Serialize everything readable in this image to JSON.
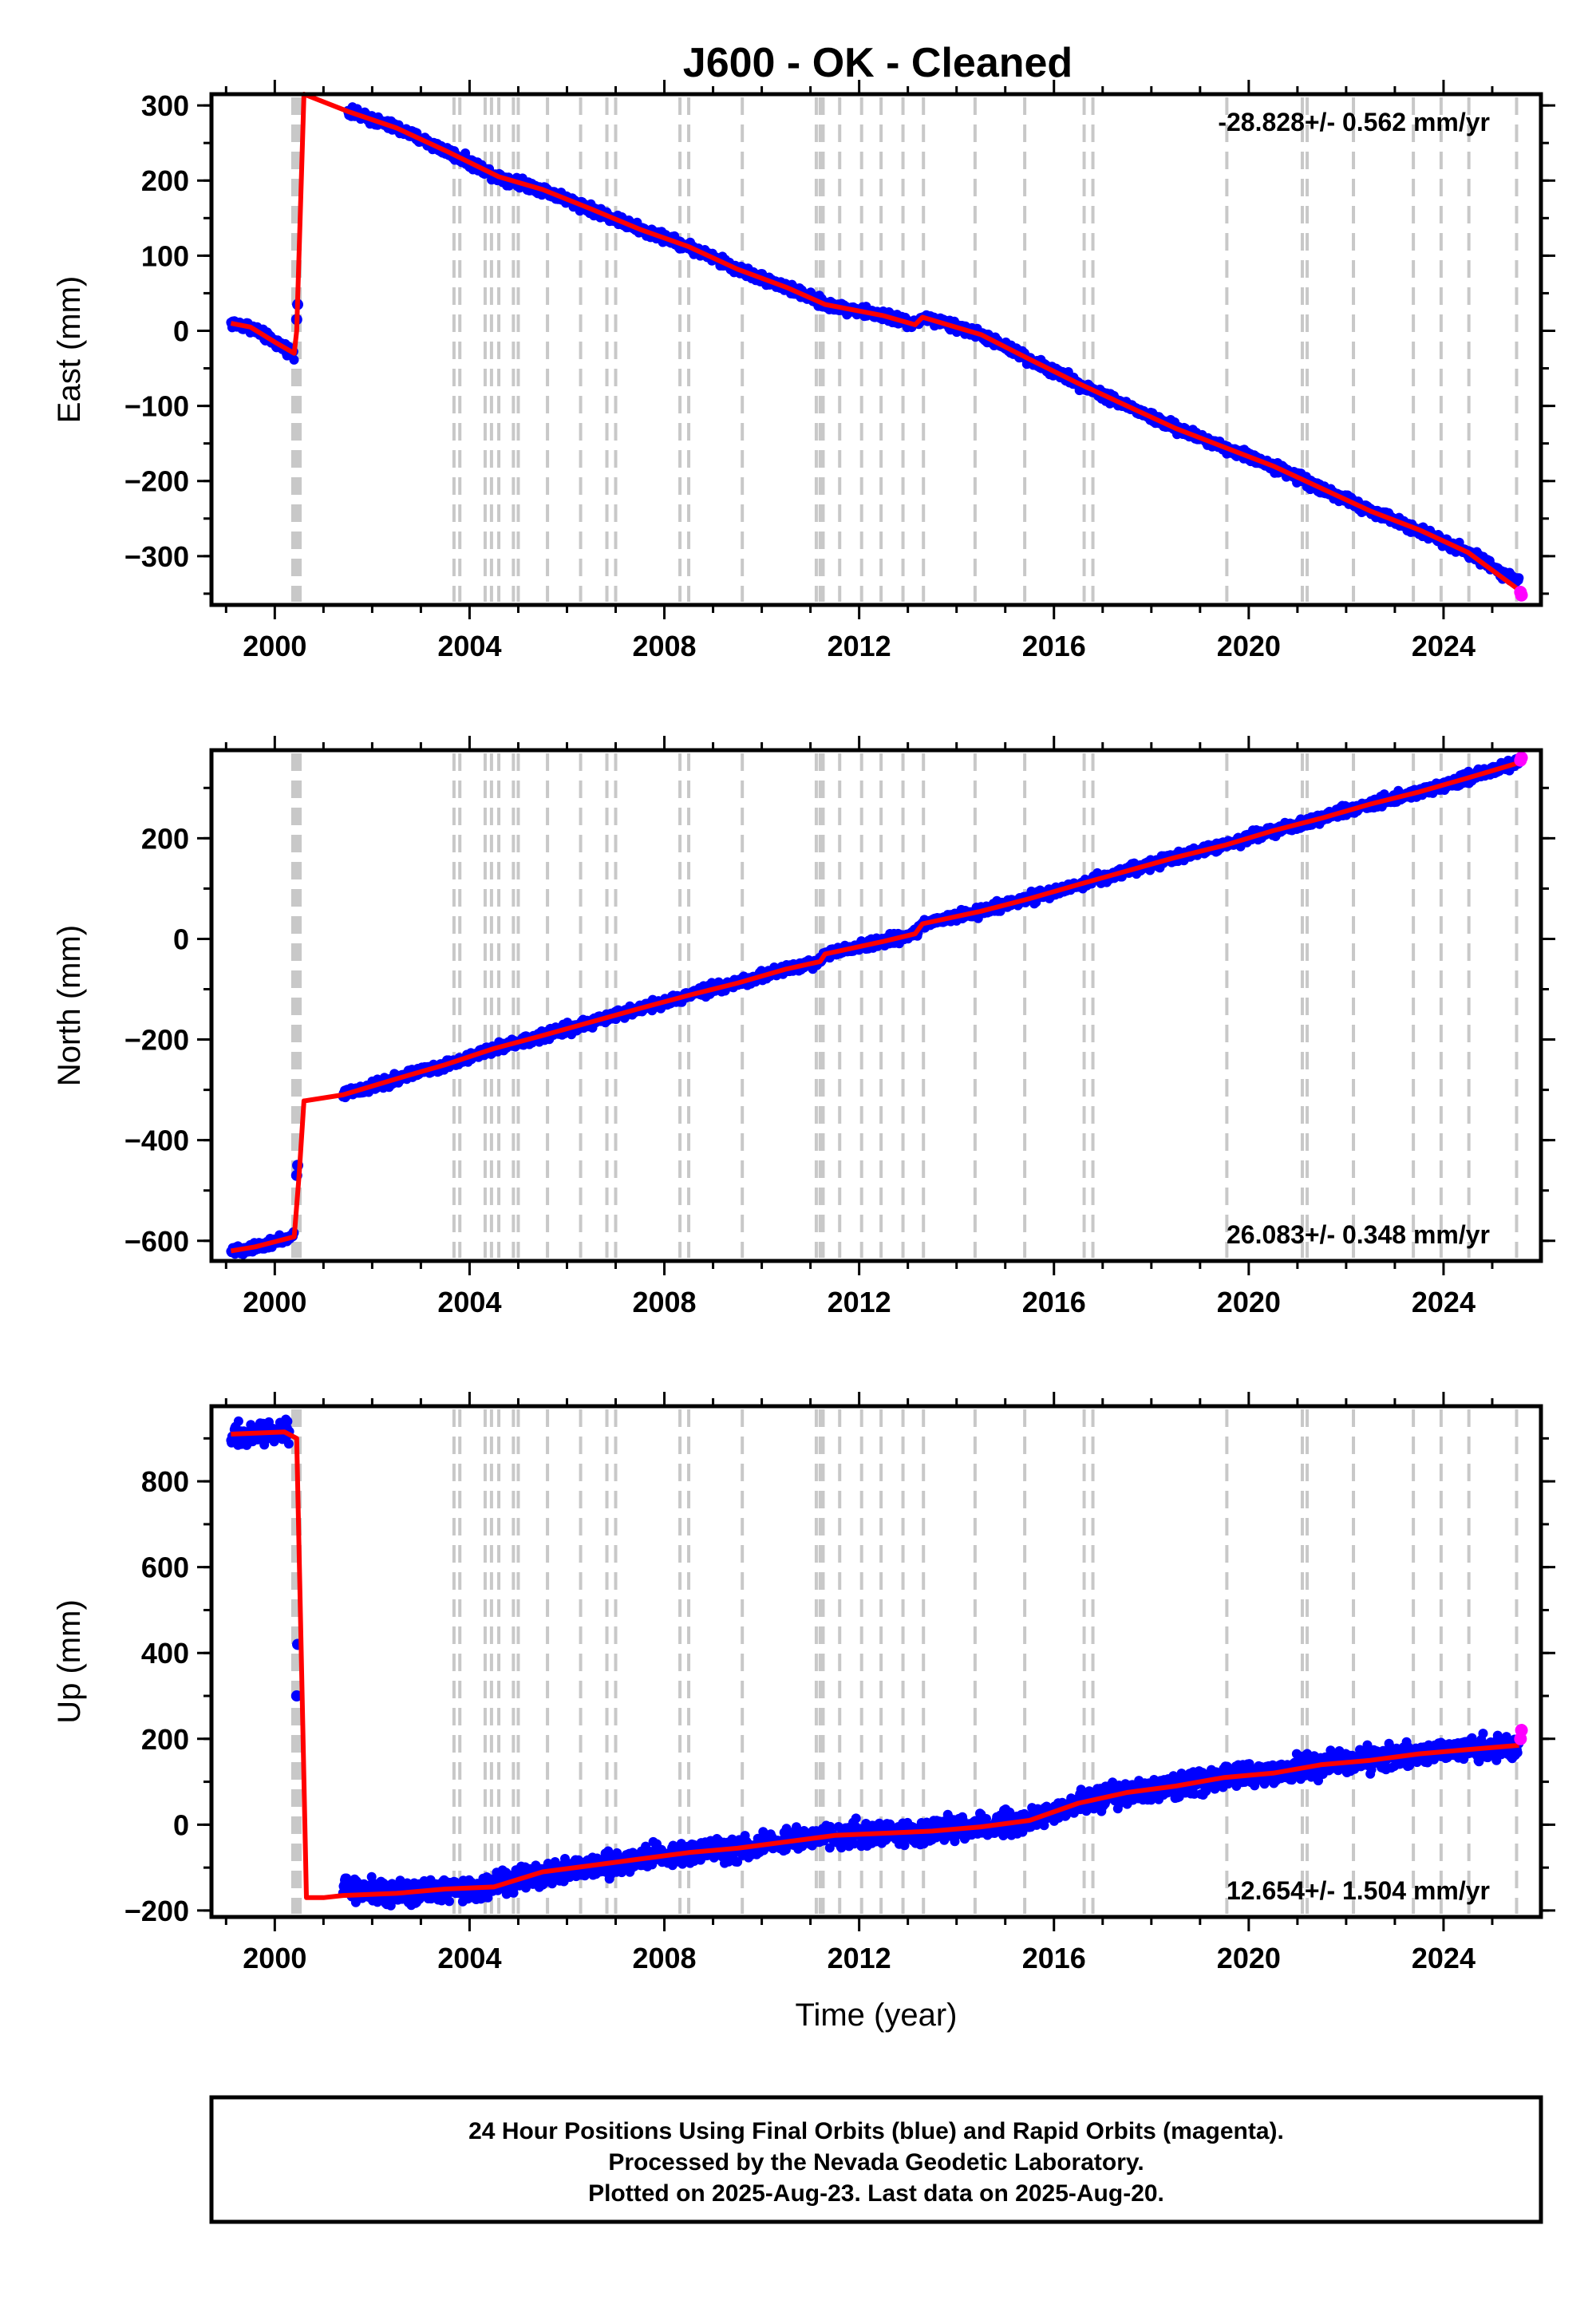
{
  "title": "J600  - OK - Cleaned",
  "footer": {
    "lines": [
      "24 Hour Positions Using Final Orbits (blue) and Rapid Orbits (magenta).",
      "Processed by the Nevada Geodetic Laboratory.",
      "Plotted on 2025-Aug-23. Last data on 2025-Aug-20."
    ]
  },
  "colors": {
    "final_orbits": "#0000ff",
    "rapid_orbits": "#ff00ff",
    "model": "#ff0000",
    "event_lines": "#c8c8c8"
  },
  "chart_data": [
    {
      "type": "scatter",
      "name": "east",
      "ylabel": "East (mm)",
      "xlabel": "",
      "xlim": [
        1998.7,
        2026.0
      ],
      "ylim": [
        -365,
        315
      ],
      "xticks": [
        2000,
        2004,
        2008,
        2012,
        2016,
        2020,
        2024
      ],
      "xtick_labels": [
        "2000",
        "2004",
        "2008",
        "2012",
        "2016",
        "2020",
        "2024"
      ],
      "yticks": [
        300,
        200,
        100,
        0,
        -100,
        -200,
        -300
      ],
      "ytick_labels": [
        "300",
        "200",
        "100",
        "0",
        "−100",
        "−200",
        "−300"
      ],
      "rate_text": "-28.828+/- 0.562 mm/yr",
      "rate_position": "top-right",
      "series": [
        {
          "role": "final-orbits",
          "x": [
            1999.1,
            1999.5,
            2000.0,
            2000.4,
            2000.45,
            2001.5,
            2002.5,
            2003.5,
            2004.6,
            2005.5,
            2006.5,
            2007.5,
            2008.5,
            2009.5,
            2010.5,
            2011.2,
            2011.3,
            2012.5,
            2013.15,
            2013.3,
            2014.5,
            2015.5,
            2016.5,
            2017.5,
            2018.5,
            2019.5,
            2020.5,
            2021.5,
            2022.5,
            2023.5,
            2024.5,
            2025.55
          ],
          "y": [
            10,
            5,
            -15,
            -30,
            15,
            292,
            270,
            240,
            205,
            188,
            162,
            135,
            112,
            82,
            58,
            38,
            35,
            20,
            8,
            18,
            -5,
            -38,
            -70,
            -100,
            -130,
            -155,
            -180,
            -210,
            -240,
            -265,
            -295,
            -335
          ]
        },
        {
          "role": "model",
          "x": [
            1999.1,
            1999.5,
            2000.0,
            2000.4,
            2000.45,
            2000.6,
            2001.5,
            2002.5,
            2003.5,
            2004.6,
            2005.5,
            2006.5,
            2007.5,
            2008.5,
            2009.5,
            2010.5,
            2011.2,
            2011.3,
            2012.5,
            2013.15,
            2013.3,
            2014.5,
            2015.5,
            2016.5,
            2017.5,
            2018.5,
            2019.5,
            2020.5,
            2021.5,
            2022.5,
            2023.5,
            2024.5,
            2025.55
          ],
          "y": [
            10,
            5,
            -15,
            -30,
            0,
            315,
            292,
            270,
            240,
            205,
            188,
            162,
            135,
            112,
            82,
            58,
            38,
            35,
            20,
            8,
            18,
            -5,
            -38,
            -70,
            -100,
            -130,
            -155,
            -180,
            -210,
            -240,
            -265,
            -295,
            -345
          ]
        },
        {
          "role": "rapid-orbits",
          "x": [
            2025.58,
            2025.6
          ],
          "y": [
            -348,
            -352
          ]
        }
      ]
    },
    {
      "type": "scatter",
      "name": "north",
      "ylabel": "North (mm)",
      "xlabel": "",
      "xlim": [
        1998.7,
        2026.0
      ],
      "ylim": [
        -640,
        375
      ],
      "xticks": [
        2000,
        2004,
        2008,
        2012,
        2016,
        2020,
        2024
      ],
      "xtick_labels": [
        "2000",
        "2004",
        "2008",
        "2012",
        "2016",
        "2020",
        "2024"
      ],
      "yticks": [
        200,
        0,
        -200,
        -400,
        -600
      ],
      "ytick_labels": [
        "200",
        "0",
        "−200",
        "−400",
        "−600"
      ],
      "rate_text": "26.083+/- 0.348 mm/yr",
      "rate_position": "bottom-right",
      "series": [
        {
          "role": "final-orbits",
          "x": [
            1999.1,
            1999.6,
            2000.0,
            2000.4,
            2000.45,
            2001.4,
            2002.5,
            2003.5,
            2004.5,
            2005.5,
            2006.5,
            2007.5,
            2008.5,
            2009.5,
            2010.5,
            2011.2,
            2011.3,
            2012.5,
            2013.15,
            2013.3,
            2014.5,
            2015.5,
            2016.5,
            2017.5,
            2018.5,
            2019.5,
            2020.5,
            2021.5,
            2022.5,
            2023.5,
            2024.5,
            2025.55
          ],
          "y": [
            -620,
            -612,
            -602,
            -592,
            -470,
            -310,
            -278,
            -250,
            -218,
            -192,
            -165,
            -138,
            -112,
            -88,
            -60,
            -45,
            -30,
            -5,
            10,
            30,
            55,
            80,
            108,
            135,
            162,
            186,
            215,
            240,
            268,
            292,
            320,
            350
          ]
        },
        {
          "role": "model",
          "x": [
            1999.1,
            1999.6,
            2000.0,
            2000.4,
            2000.5,
            2000.6,
            2001.4,
            2002.5,
            2003.5,
            2004.5,
            2005.5,
            2006.5,
            2007.5,
            2008.5,
            2009.5,
            2010.5,
            2011.2,
            2011.3,
            2012.5,
            2013.15,
            2013.3,
            2014.5,
            2015.5,
            2016.5,
            2017.5,
            2018.5,
            2019.5,
            2020.5,
            2021.5,
            2022.5,
            2023.5,
            2024.5,
            2025.55
          ],
          "y": [
            -620,
            -612,
            -602,
            -592,
            -470,
            -322,
            -310,
            -278,
            -250,
            -218,
            -192,
            -165,
            -138,
            -112,
            -88,
            -60,
            -45,
            -30,
            -5,
            10,
            30,
            55,
            80,
            108,
            135,
            162,
            186,
            215,
            240,
            268,
            292,
            320,
            350
          ]
        },
        {
          "role": "rapid-orbits",
          "x": [
            2025.58,
            2025.6
          ],
          "y": [
            355,
            360
          ]
        }
      ]
    },
    {
      "type": "scatter",
      "name": "up",
      "ylabel": "Up (mm)",
      "xlabel": "Time (year)",
      "xlim": [
        1998.7,
        2026.0
      ],
      "ylim": [
        -215,
        975
      ],
      "xticks": [
        2000,
        2004,
        2008,
        2012,
        2016,
        2020,
        2024
      ],
      "xtick_labels": [
        "2000",
        "2004",
        "2008",
        "2012",
        "2016",
        "2020",
        "2024"
      ],
      "yticks": [
        800,
        600,
        400,
        200,
        0,
        -200
      ],
      "ytick_labels": [
        "800",
        "600",
        "400",
        "200",
        "0",
        "−200"
      ],
      "rate_text": "12.654+/- 1.504 mm/yr",
      "rate_position": "bottom-right",
      "series": [
        {
          "role": "final-orbits",
          "x": [
            1999.1,
            1999.6,
            2000.0,
            2000.3,
            2000.45,
            2001.4,
            2002.5,
            2003.5,
            2004.5,
            2005.5,
            2006.5,
            2007.5,
            2008.5,
            2009.5,
            2010.5,
            2011.5,
            2012.5,
            2013.5,
            2014.5,
            2015.5,
            2016.5,
            2017.5,
            2018.5,
            2019.5,
            2020.5,
            2021.5,
            2022.5,
            2023.5,
            2024.5,
            2025.55
          ],
          "y": [
            905,
            910,
            912,
            920,
            300,
            -145,
            -160,
            -150,
            -145,
            -110,
            -95,
            -80,
            -65,
            -55,
            -40,
            -25,
            -20,
            -15,
            -5,
            10,
            50,
            75,
            90,
            110,
            120,
            140,
            150,
            165,
            175,
            180
          ]
        },
        {
          "role": "model",
          "x": [
            1999.1,
            2000.2,
            2000.45,
            2000.65,
            2001.0,
            2001.4,
            2002.5,
            2003.5,
            2004.5,
            2005.5,
            2006.5,
            2007.5,
            2008.5,
            2009.5,
            2010.5,
            2011.5,
            2012.5,
            2013.5,
            2014.5,
            2015.5,
            2016.5,
            2017.5,
            2018.5,
            2019.5,
            2020.5,
            2021.5,
            2022.5,
            2023.5,
            2024.5,
            2025.55
          ],
          "y": [
            910,
            915,
            900,
            -170,
            -170,
            -165,
            -160,
            -150,
            -145,
            -110,
            -95,
            -80,
            -65,
            -55,
            -40,
            -25,
            -20,
            -15,
            -5,
            10,
            50,
            75,
            90,
            110,
            120,
            140,
            150,
            165,
            175,
            185
          ]
        },
        {
          "role": "rapid-orbits",
          "x": [
            2025.58,
            2025.6
          ],
          "y": [
            200,
            220
          ]
        }
      ]
    }
  ],
  "event_lines": [
    2000.37,
    2000.42,
    2000.47,
    2000.52,
    2003.68,
    2003.8,
    2004.32,
    2004.45,
    2004.6,
    2004.9,
    2005.0,
    2005.6,
    2006.28,
    2006.82,
    2007.0,
    2008.32,
    2008.5,
    2009.6,
    2011.12,
    2011.2,
    2011.26,
    2011.6,
    2012.05,
    2012.45,
    2012.9,
    2013.32,
    2014.38,
    2015.4,
    2016.62,
    2016.8,
    2019.55,
    2021.1,
    2021.2,
    2022.15,
    2023.38,
    2023.95,
    2024.52,
    2025.5
  ]
}
